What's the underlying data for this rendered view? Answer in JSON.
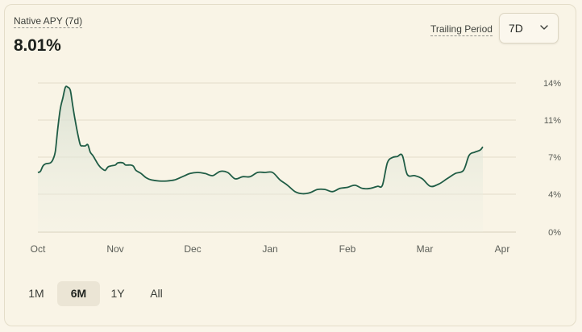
{
  "header": {
    "metric_label": "Native APY (7d)",
    "metric_value": "8.01%",
    "trailing_label": "Trailing Period",
    "trailing_value": "7D"
  },
  "range_tabs": [
    {
      "label": "1M",
      "active": false
    },
    {
      "label": "6M",
      "active": true
    },
    {
      "label": "1Y",
      "active": false
    },
    {
      "label": "All",
      "active": false
    }
  ],
  "colors": {
    "line": "#1f5c45",
    "grid": "#e2dccb",
    "background": "#f9f4e6"
  },
  "chart_data": {
    "type": "area",
    "x_tick_labels": [
      "Oct",
      "Nov",
      "Dec",
      "Jan",
      "Feb",
      "Mar",
      "Apr"
    ],
    "y_tick_labels": [
      "14%",
      "11%",
      "7%",
      "4%",
      "0%"
    ],
    "ylim": [
      0,
      14
    ],
    "x_unit": "days since Oct 1",
    "grid": true,
    "series": [
      {
        "values": [
          [
            0,
            5.6
          ],
          [
            1,
            5.7
          ],
          [
            2,
            6.2
          ],
          [
            3,
            6.4
          ],
          [
            5,
            6.5
          ],
          [
            6,
            6.8
          ],
          [
            7,
            7.6
          ],
          [
            8,
            9.8
          ],
          [
            9,
            11.6
          ],
          [
            10,
            12.6
          ],
          [
            11,
            13.6
          ],
          [
            12,
            13.6
          ],
          [
            13,
            13.3
          ],
          [
            14,
            11.8
          ],
          [
            15,
            10.4
          ],
          [
            16,
            9.2
          ],
          [
            17,
            8.2
          ],
          [
            18,
            8.1
          ],
          [
            19,
            8.1
          ],
          [
            20,
            8.2
          ],
          [
            21,
            7.5
          ],
          [
            22,
            7.2
          ],
          [
            23,
            6.8
          ],
          [
            24,
            6.4
          ],
          [
            25,
            6.1
          ],
          [
            26,
            5.9
          ],
          [
            27,
            5.8
          ],
          [
            28,
            6.1
          ],
          [
            29,
            6.2
          ],
          [
            31,
            6.3
          ],
          [
            32,
            6.5
          ],
          [
            34,
            6.5
          ],
          [
            35,
            6.3
          ],
          [
            37,
            6.3
          ],
          [
            38,
            6.2
          ],
          [
            39,
            5.8
          ],
          [
            41,
            5.5
          ],
          [
            43,
            5.1
          ],
          [
            45,
            4.9
          ],
          [
            48,
            4.8
          ],
          [
            51,
            4.8
          ],
          [
            54,
            4.9
          ],
          [
            57,
            5.2
          ],
          [
            60,
            5.5
          ],
          [
            63,
            5.6
          ],
          [
            66,
            5.5
          ],
          [
            69,
            5.3
          ],
          [
            72,
            5.7
          ],
          [
            75,
            5.6
          ],
          [
            78,
            5.0
          ],
          [
            81,
            5.2
          ],
          [
            84,
            5.2
          ],
          [
            87,
            5.6
          ],
          [
            90,
            5.6
          ],
          [
            93,
            5.6
          ],
          [
            96,
            4.9
          ],
          [
            99,
            4.4
          ],
          [
            102,
            3.8
          ],
          [
            105,
            3.6
          ],
          [
            108,
            3.7
          ],
          [
            111,
            4.0
          ],
          [
            114,
            4.0
          ],
          [
            117,
            3.8
          ],
          [
            120,
            4.1
          ],
          [
            123,
            4.2
          ],
          [
            126,
            4.4
          ],
          [
            129,
            4.1
          ],
          [
            132,
            4.1
          ],
          [
            135,
            4.3
          ],
          [
            137,
            4.4
          ],
          [
            139,
            6.5
          ],
          [
            141,
            7.0
          ],
          [
            143,
            7.1
          ],
          [
            145,
            7.2
          ],
          [
            147,
            5.4
          ],
          [
            150,
            5.3
          ],
          [
            153,
            5.0
          ],
          [
            156,
            4.3
          ],
          [
            159,
            4.5
          ],
          [
            162,
            5.0
          ],
          [
            165,
            5.5
          ],
          [
            168,
            5.8
          ],
          [
            170,
            7.2
          ],
          [
            172,
            7.5
          ],
          [
            174,
            7.7
          ],
          [
            175,
            8.01
          ]
        ]
      }
    ]
  }
}
